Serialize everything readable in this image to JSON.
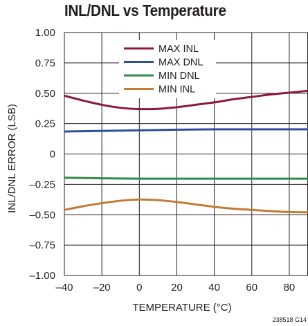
{
  "chart_data": {
    "type": "line",
    "title": "INL/DNL vs Temperature",
    "xlabel": "TEMPERATURE (°C)",
    "ylabel": "INL/DNL ERROR (LSB)",
    "xlim": [
      -40,
      90
    ],
    "ylim": [
      -1.0,
      1.0
    ],
    "xticks": [
      -40,
      -20,
      0,
      20,
      40,
      60,
      80
    ],
    "xtick_labels": [
      "–40",
      "–20",
      "0",
      "20",
      "40",
      "60",
      "80"
    ],
    "yticks": [
      1.0,
      0.75,
      0.5,
      0.25,
      0,
      -0.25,
      -0.5,
      -0.75,
      -1.0
    ],
    "ytick_labels": [
      "1.00",
      "0.75",
      "0.50",
      "0.25",
      "0",
      "–0.25",
      "–0.50",
      "–0.75",
      "–1.00"
    ],
    "grid": true,
    "legend": "top-center",
    "series": [
      {
        "name": "MAX INL",
        "color": "#8b1a3a",
        "x": [
          -40,
          -30,
          -20,
          -10,
          0,
          10,
          20,
          30,
          40,
          50,
          60,
          70,
          80,
          90
        ],
        "y": [
          0.48,
          0.44,
          0.405,
          0.38,
          0.37,
          0.372,
          0.385,
          0.405,
          0.425,
          0.45,
          0.47,
          0.49,
          0.505,
          0.52
        ]
      },
      {
        "name": "MAX DNL",
        "color": "#2e4d9e",
        "x": [
          -40,
          -20,
          0,
          20,
          40,
          60,
          80,
          90
        ],
        "y": [
          0.185,
          0.19,
          0.195,
          0.2,
          0.203,
          0.203,
          0.203,
          0.203
        ]
      },
      {
        "name": "MIN DNL",
        "color": "#2e8b4a",
        "x": [
          -40,
          -20,
          0,
          20,
          40,
          60,
          80,
          90
        ],
        "y": [
          -0.195,
          -0.2,
          -0.203,
          -0.203,
          -0.203,
          -0.203,
          -0.203,
          -0.203
        ]
      },
      {
        "name": "MIN INL",
        "color": "#c47a32",
        "x": [
          -40,
          -30,
          -20,
          -10,
          0,
          10,
          20,
          30,
          40,
          50,
          60,
          70,
          80,
          90
        ],
        "y": [
          -0.46,
          -0.43,
          -0.405,
          -0.385,
          -0.375,
          -0.38,
          -0.395,
          -0.415,
          -0.435,
          -0.45,
          -0.46,
          -0.47,
          -0.478,
          -0.48
        ]
      }
    ]
  },
  "figure_id": "238518 G14"
}
